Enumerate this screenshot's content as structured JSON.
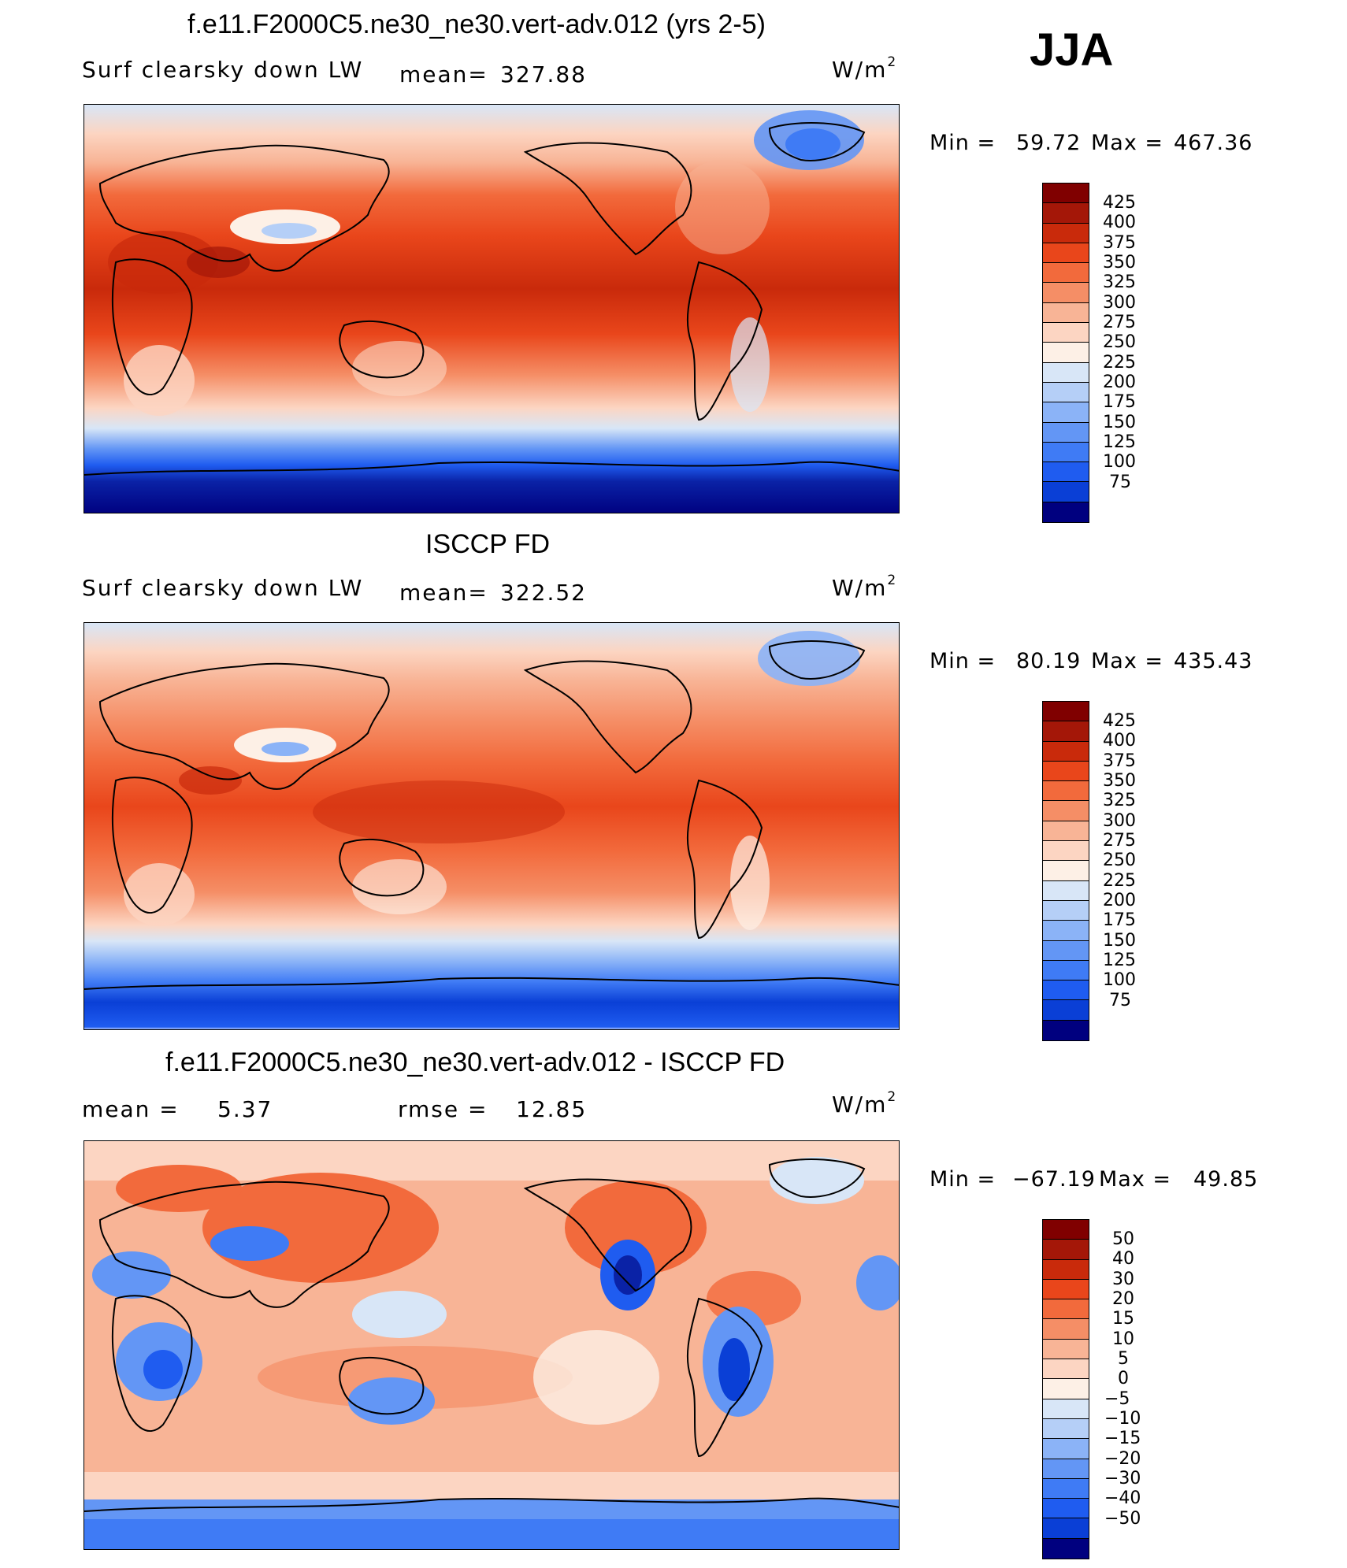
{
  "season": "JJA",
  "colors": {
    "scale": [
      "#00007f",
      "#0a22a6",
      "#0a3fd6",
      "#1f5cf0",
      "#3f7bf5",
      "#6396f5",
      "#8bb3f7",
      "#b5cff7",
      "#d8e6f7",
      "#fdf0e6",
      "#fcd5c2",
      "#f8b496",
      "#f58e66",
      "#f26a3c",
      "#e9461b",
      "#c92a0b",
      "#a41708",
      "#800000"
    ]
  },
  "panels": [
    {
      "title": "f.e11.F2000C5.ne30_ne30.vert-adv.012 (yrs 2-5)",
      "left_label": "Surf clearsky down LW",
      "stat_label": "mean=",
      "stat_value": "327.88",
      "units": "W/m",
      "units_exp": "2",
      "min_label": "Min =",
      "min_value": "59.72",
      "max_label": "Max =",
      "max_value": "467.36",
      "levels": [
        "425",
        "400",
        "375",
        "350",
        "325",
        "300",
        "275",
        "250",
        "225",
        "200",
        "175",
        "150",
        "125",
        "100",
        "75"
      ]
    },
    {
      "title": "ISCCP FD",
      "left_label": "Surf clearsky down LW",
      "stat_label": "mean=",
      "stat_value": "322.52",
      "units": "W/m",
      "units_exp": "2",
      "min_label": "Min =",
      "min_value": "80.19",
      "max_label": "Max =",
      "max_value": "435.43",
      "levels": [
        "425",
        "400",
        "375",
        "350",
        "325",
        "300",
        "275",
        "250",
        "225",
        "200",
        "175",
        "150",
        "125",
        "100",
        "75"
      ]
    },
    {
      "title": "f.e11.F2000C5.ne30_ne30.vert-adv.012 - ISCCP FD",
      "left_label": "mean =",
      "left_value": "5.37",
      "stat_label": "rmse =",
      "stat_value": "12.85",
      "units": "W/m",
      "units_exp": "2",
      "min_label": "Min =",
      "min_value": "−67.19",
      "max_label": "Max =",
      "max_value": "49.85",
      "levels": [
        "50",
        "40",
        "30",
        "20",
        "15",
        "10",
        "5",
        "0",
        "−5",
        "−10",
        "−15",
        "−20",
        "−30",
        "−40",
        "−50"
      ]
    }
  ]
}
